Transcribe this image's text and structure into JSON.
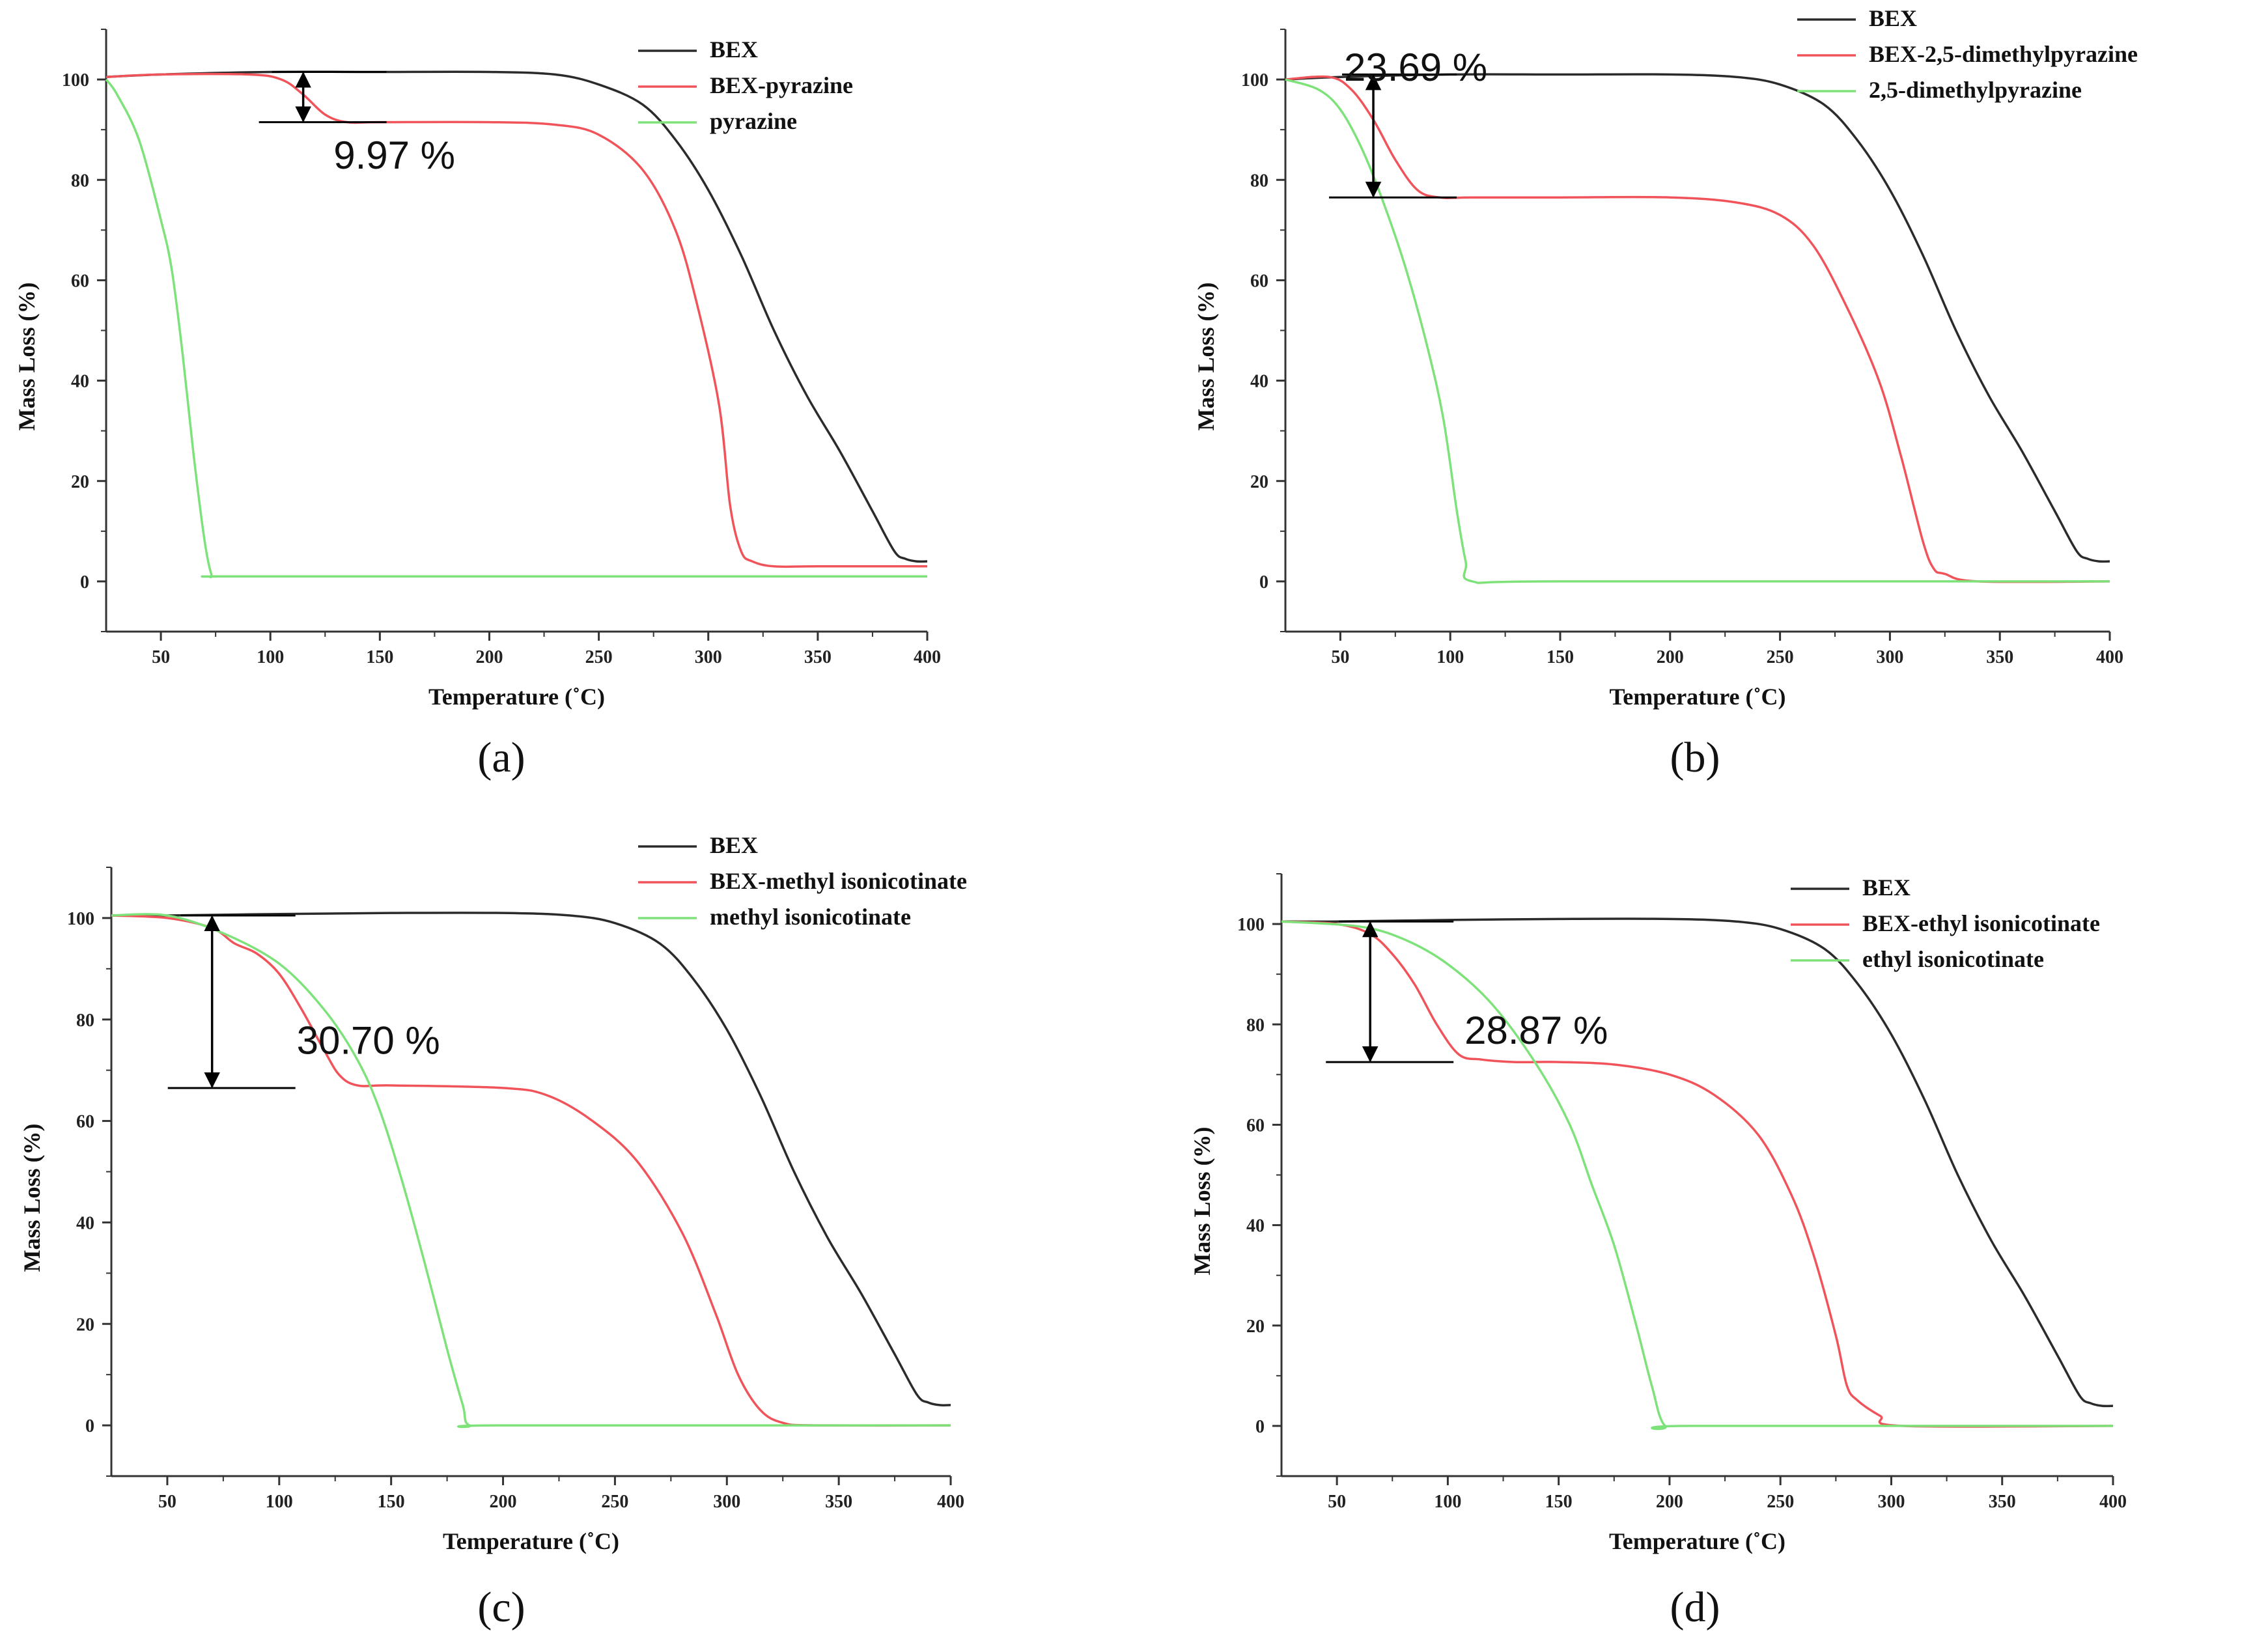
{
  "colors": {
    "bex": "#2b2b2b",
    "complex": "#f0545a",
    "ligand": "#7ee27a",
    "axis": "#333333",
    "annotation": "#000000"
  },
  "chart_data": [
    {
      "type": "line",
      "panel_label": "(a)",
      "xlabel": "Temperature (˚C)",
      "ylabel": "Mass Loss (%)",
      "xlim": [
        25,
        400
      ],
      "ylim": [
        -10,
        110
      ],
      "xticks": [
        50,
        100,
        150,
        200,
        250,
        300,
        350,
        400
      ],
      "yticks": [
        0,
        20,
        40,
        60,
        80,
        100
      ],
      "legend": [
        "BEX",
        "BEX-pyrazine",
        "pyrazine"
      ],
      "annotation": {
        "text": "9.97 %",
        "x": 115,
        "y_top": 101.5,
        "y_bottom": 91.5
      },
      "series": [
        {
          "name": "BEX",
          "x": [
            25,
            50,
            100,
            150,
            200,
            230,
            250,
            270,
            285,
            300,
            315,
            330,
            345,
            360,
            375,
            385,
            390,
            395,
            400
          ],
          "y": [
            100.5,
            101,
            101.5,
            101.5,
            101.5,
            101,
            99,
            95,
            88,
            78,
            65,
            50,
            37,
            26,
            14,
            6,
            4.5,
            4,
            4
          ]
        },
        {
          "name": "BEX-pyrazine",
          "x": [
            25,
            50,
            90,
            105,
            115,
            125,
            135,
            150,
            200,
            230,
            250,
            270,
            285,
            295,
            305,
            310,
            315,
            320,
            330,
            350,
            400
          ],
          "y": [
            100.5,
            101,
            101,
            100,
            97,
            93,
            91.5,
            91.5,
            91.5,
            91,
            89,
            82,
            70,
            55,
            35,
            15,
            6,
            4,
            3,
            3,
            3
          ]
        },
        {
          "name": "pyrazine",
          "x": [
            25,
            30,
            40,
            50,
            55,
            60,
            65,
            70,
            73,
            75,
            100,
            400
          ],
          "y": [
            100,
            97,
            88,
            72,
            62,
            45,
            25,
            8,
            1.5,
            1,
            1,
            1
          ]
        }
      ]
    },
    {
      "type": "line",
      "panel_label": "(b)",
      "xlabel": "Temperature (˚C)",
      "ylabel": "Mass Loss (%)",
      "xlim": [
        25,
        400
      ],
      "ylim": [
        -10,
        110
      ],
      "xticks": [
        50,
        100,
        150,
        200,
        250,
        300,
        350,
        400
      ],
      "yticks": [
        0,
        20,
        40,
        60,
        80,
        100
      ],
      "legend": [
        "BEX",
        "BEX-2,5-dimethylpyrazine",
        "2,5-dimethylpyrazine"
      ],
      "annotation": {
        "text": "23.69 %",
        "x": 65,
        "y_top": 101,
        "y_bottom": 76.5
      },
      "series": [
        {
          "name": "BEX",
          "x": [
            25,
            50,
            100,
            150,
            200,
            230,
            250,
            270,
            285,
            300,
            315,
            330,
            345,
            360,
            375,
            385,
            390,
            395,
            400
          ],
          "y": [
            100,
            100.5,
            101,
            101,
            101,
            100.5,
            99,
            95,
            88,
            78,
            65,
            50,
            37,
            26,
            14,
            6,
            4.5,
            4,
            4
          ]
        },
        {
          "name": "BEX-2,5-dimethylpyrazine",
          "x": [
            25,
            45,
            55,
            65,
            75,
            85,
            95,
            110,
            150,
            200,
            230,
            250,
            265,
            280,
            295,
            305,
            315,
            320,
            325,
            340,
            400
          ],
          "y": [
            100,
            100.5,
            98,
            92,
            84,
            78,
            76.5,
            76.5,
            76.5,
            76.5,
            75.5,
            73,
            67,
            55,
            40,
            25,
            8,
            2.5,
            1.5,
            0,
            0
          ]
        },
        {
          "name": "2,5-dimethylpyrazine",
          "x": [
            25,
            40,
            50,
            60,
            70,
            80,
            90,
            97,
            103,
            107,
            110,
            150,
            400
          ],
          "y": [
            100,
            98,
            94,
            86,
            75,
            62,
            46,
            32,
            14,
            4,
            0,
            0,
            0
          ]
        }
      ]
    },
    {
      "type": "line",
      "panel_label": "(c)",
      "xlabel": "Temperature (˚C)",
      "ylabel": "Mass Loss (%)",
      "xlim": [
        25,
        400
      ],
      "ylim": [
        -10,
        110
      ],
      "xticks": [
        50,
        100,
        150,
        200,
        250,
        300,
        350,
        400
      ],
      "yticks": [
        0,
        20,
        40,
        60,
        80,
        100
      ],
      "legend": [
        "BEX",
        "BEX-methyl isonicotinate",
        "methyl isonicotinate"
      ],
      "annotation": {
        "text": "30.70 %",
        "x": 70,
        "y_top": 100.5,
        "y_bottom": 66.5
      },
      "series": [
        {
          "name": "BEX",
          "x": [
            25,
            50,
            100,
            150,
            200,
            230,
            250,
            270,
            285,
            300,
            315,
            330,
            345,
            360,
            375,
            385,
            390,
            395,
            400
          ],
          "y": [
            100.5,
            100.5,
            100.8,
            101,
            101,
            100.5,
            99,
            95,
            88,
            78,
            65,
            50,
            37,
            26,
            14,
            6,
            4.5,
            4,
            4
          ]
        },
        {
          "name": "BEX-methyl isonicotinate",
          "x": [
            25,
            50,
            70,
            80,
            90,
            100,
            110,
            120,
            127,
            135,
            150,
            200,
            220,
            240,
            260,
            280,
            295,
            305,
            315,
            325,
            340,
            400
          ],
          "y": [
            100.5,
            100,
            98,
            95,
            93,
            89,
            82,
            74,
            69,
            67,
            67,
            66.5,
            65,
            60,
            52,
            38,
            22,
            10,
            3,
            0.5,
            0,
            0
          ]
        },
        {
          "name": "methyl isonicotinate",
          "x": [
            25,
            50,
            75,
            100,
            120,
            135,
            145,
            155,
            165,
            175,
            182,
            185,
            200,
            400
          ],
          "y": [
            100.5,
            100.5,
            97,
            91,
            82,
            72,
            62,
            48,
            32,
            15,
            4,
            0,
            0,
            0
          ]
        }
      ]
    },
    {
      "type": "line",
      "panel_label": "(d)",
      "xlabel": "Temperature (˚C)",
      "ylabel": "Mass Loss (%)",
      "xlim": [
        25,
        400
      ],
      "ylim": [
        -10,
        110
      ],
      "xticks": [
        50,
        100,
        150,
        200,
        250,
        300,
        350,
        400
      ],
      "yticks": [
        0,
        20,
        40,
        60,
        80,
        100
      ],
      "legend": [
        "BEX",
        "BEX-ethyl isonicotinate",
        "ethyl isonicotinate"
      ],
      "annotation": {
        "text": "28.87 %",
        "x": 65,
        "y_top": 100.5,
        "y_bottom": 72.5
      },
      "series": [
        {
          "name": "BEX",
          "x": [
            25,
            50,
            100,
            150,
            200,
            230,
            250,
            270,
            285,
            300,
            315,
            330,
            345,
            360,
            375,
            385,
            390,
            395,
            400
          ],
          "y": [
            100.5,
            100.5,
            100.8,
            101,
            101,
            100.5,
            99,
            95,
            88,
            78,
            65,
            50,
            37,
            26,
            14,
            6,
            4.5,
            4,
            4
          ]
        },
        {
          "name": "BEX-ethyl isonicotinate",
          "x": [
            25,
            50,
            65,
            75,
            85,
            95,
            105,
            115,
            130,
            150,
            175,
            200,
            220,
            240,
            255,
            265,
            275,
            280,
            285,
            295,
            305,
            400
          ],
          "y": [
            100.5,
            100,
            98,
            94,
            88,
            80,
            74,
            73,
            72.5,
            72.5,
            72,
            70,
            66,
            58,
            46,
            34,
            18,
            8,
            5,
            2,
            0,
            0
          ]
        },
        {
          "name": "ethyl isonicotinate",
          "x": [
            25,
            60,
            80,
            100,
            120,
            140,
            155,
            165,
            175,
            185,
            192,
            198,
            210,
            400
          ],
          "y": [
            100.5,
            99.5,
            97,
            92,
            84,
            72,
            60,
            48,
            36,
            20,
            8,
            0,
            0,
            0
          ]
        }
      ]
    }
  ]
}
